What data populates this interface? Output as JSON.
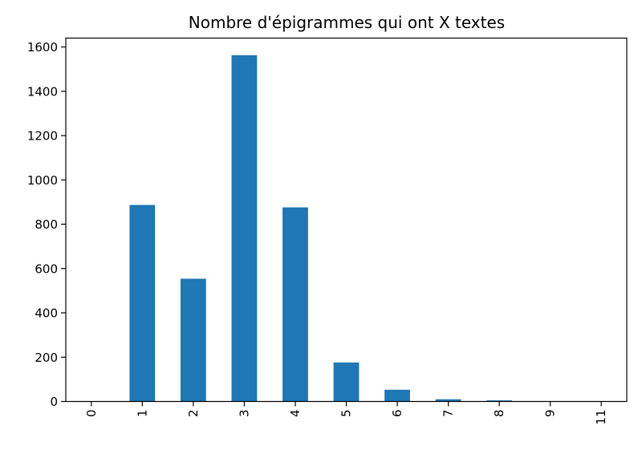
{
  "chart_data": {
    "type": "bar",
    "title": "Nombre d'épigrammes qui ont X textes",
    "xlabel": "",
    "ylabel": "",
    "categories": [
      "0",
      "1",
      "2",
      "3",
      "4",
      "5",
      "6",
      "7",
      "8",
      "9",
      "11"
    ],
    "values": [
      1,
      887,
      554,
      1563,
      876,
      176,
      53,
      10,
      5,
      1,
      1
    ],
    "ylim": [
      0,
      1640
    ],
    "yticks": [
      0,
      200,
      400,
      600,
      800,
      1000,
      1200,
      1400,
      1600
    ],
    "grid": false,
    "legend": "none",
    "bar_color": "#1f77b4"
  }
}
